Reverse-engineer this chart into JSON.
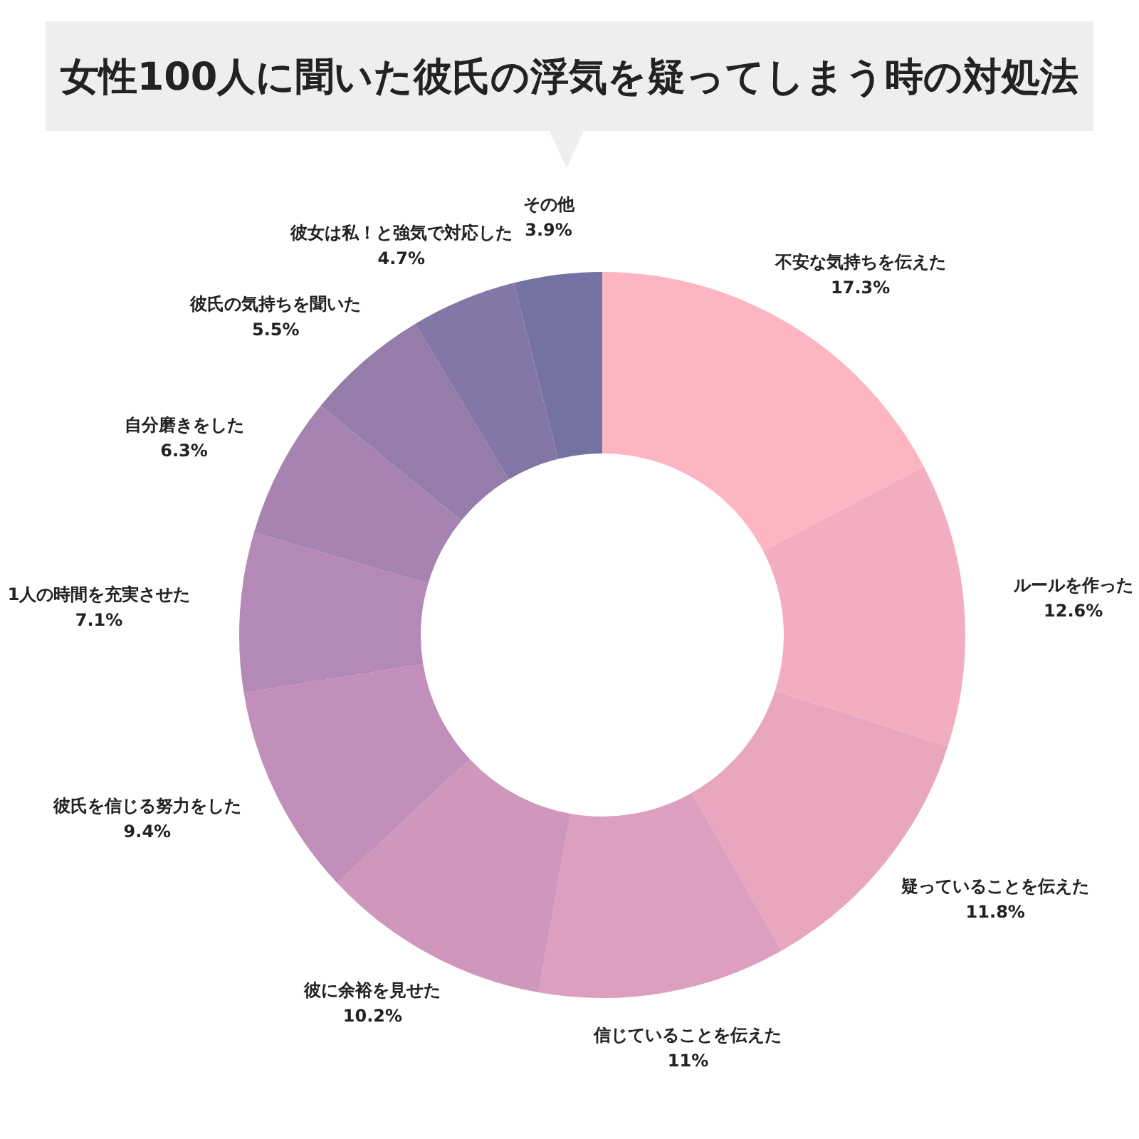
{
  "chart_data": {
    "type": "donut",
    "title": "女性100人に聞いた彼氏の浮気を疑ってしまう時の対処法",
    "categories": [
      "不安な気持ちを伝えた",
      "ルールを作った",
      "疑っていることを伝えた",
      "信じていることを伝えた",
      "彼に余裕を見せた",
      "彼氏を信じる努力をした",
      "1人の時間を充実させた",
      "自分磨きをした",
      "彼氏の気持ちを聞いた",
      "彼女は私！と強気で対応した",
      "その他"
    ],
    "values": [
      17.3,
      12.6,
      11.8,
      11,
      10.2,
      9.4,
      7.1,
      6.3,
      5.5,
      4.7,
      3.9
    ],
    "value_labels": [
      "17.3%",
      "12.6%",
      "11.8%",
      "11%",
      "10.2%",
      "9.4%",
      "7.1%",
      "6.3%",
      "5.5%",
      "4.7%",
      "3.9%"
    ],
    "colors": [
      "#fdb5c1",
      "#f2adc1",
      "#e8a6bf",
      "#dc9fc0",
      "#d097bd",
      "#c28eba",
      "#b489b5",
      "#a683b0",
      "#957cab",
      "#8476a6",
      "#7472a2"
    ]
  }
}
